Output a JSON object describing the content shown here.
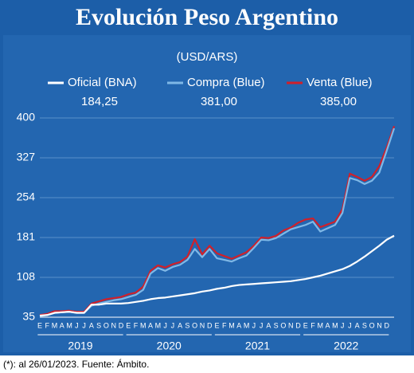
{
  "chart_data": {
    "type": "line",
    "title": "Evolución Peso Argentino",
    "subtitle": "(USD/ARS)",
    "note": "(*): al 26/01/2023. Fuente: Ámbito.",
    "categories": [
      "E",
      "F",
      "M",
      "A",
      "M",
      "J",
      "J",
      "A",
      "S",
      "O",
      "N",
      "D",
      "E",
      "F",
      "M",
      "A",
      "M",
      "J",
      "J",
      "A",
      "S",
      "O",
      "N",
      "D",
      "E",
      "F",
      "M",
      "A",
      "M",
      "J",
      "J",
      "A",
      "S",
      "O",
      "N",
      "D",
      "E",
      "F",
      "M",
      "A",
      "M",
      "J",
      "J",
      "A",
      "S",
      "O",
      "N",
      "D",
      null
    ],
    "year_labels": [
      "2019",
      "2020",
      "2021",
      "2022"
    ],
    "series": [
      {
        "name": "Venta (Blue)",
        "value_label": "385,00",
        "color": "#d0202a",
        "values": [
          39,
          41,
          46,
          46,
          47,
          45,
          45,
          60,
          64,
          68,
          70,
          72,
          77,
          80,
          91,
          120,
          130,
          126,
          132,
          136,
          146,
          178,
          150,
          166,
          152,
          147,
          142,
          148,
          154,
          166,
          181,
          180,
          184,
          194,
          199,
          208,
          214,
          216,
          200,
          205,
          210,
          233,
          298,
          292,
          285,
          292,
          312,
          346,
          385
        ]
      },
      {
        "name": "Compra (Blue)",
        "value_label": "381,00",
        "color": "#7fb8e6",
        "values": [
          37,
          39,
          43,
          44,
          45,
          43,
          43,
          56,
          60,
          63,
          66,
          68,
          72,
          76,
          85,
          115,
          125,
          120,
          127,
          131,
          140,
          160,
          145,
          160,
          143,
          140,
          137,
          143,
          148,
          162,
          177,
          176,
          180,
          188,
          196,
          200,
          204,
          210,
          192,
          198,
          204,
          226,
          290,
          286,
          279,
          285,
          300,
          340,
          381
        ]
      },
      {
        "name": "Oficial (BNA)",
        "value_label": "184,25",
        "color": "#ffffff",
        "values": [
          38,
          39,
          43,
          44,
          45,
          43,
          43,
          58,
          58,
          60,
          60,
          60,
          61,
          63,
          65,
          68,
          70,
          71,
          73,
          75,
          77,
          79,
          82,
          84,
          87,
          89,
          92,
          94,
          95,
          96,
          97,
          98,
          99,
          100,
          101,
          103,
          105,
          108,
          111,
          115,
          119,
          123,
          129,
          137,
          146,
          156,
          166,
          177,
          184.25
        ]
      }
    ],
    "legend_order": [
      2,
      1,
      0
    ],
    "ylim": [
      35,
      400
    ],
    "yticks": [
      35,
      108,
      181,
      254,
      327,
      400
    ],
    "grid": true
  }
}
